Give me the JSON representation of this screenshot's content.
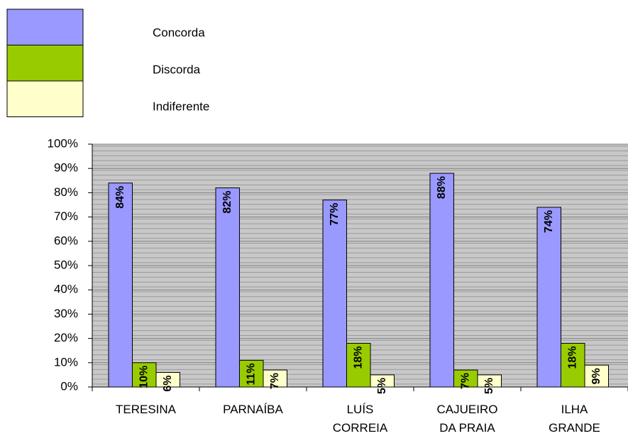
{
  "chart_data": {
    "type": "bar",
    "categories": [
      [
        "TERESINA"
      ],
      [
        "PARNAÍBA"
      ],
      [
        "LUÍS",
        "CORREIA"
      ],
      [
        "CAJUEIRO",
        "DA PRAIA"
      ],
      [
        "ILHA",
        "GRANDE"
      ]
    ],
    "series": [
      {
        "name": "Concorda",
        "color": "#9999ff",
        "values": [
          84,
          82,
          77,
          88,
          74
        ],
        "value_labels": [
          "84%",
          "82%",
          "77%",
          "88%",
          "74%"
        ]
      },
      {
        "name": "Discorda",
        "color": "#99cc00",
        "values": [
          10,
          11,
          18,
          7,
          18
        ],
        "value_labels": [
          "10%",
          "11%",
          "18%",
          "7%",
          "18%"
        ]
      },
      {
        "name": "Indiferente",
        "color": "#ffffcc",
        "values": [
          6,
          7,
          5,
          5,
          9
        ],
        "value_labels": [
          "6%",
          "7%",
          "5%",
          "5%",
          "9%"
        ]
      }
    ],
    "ylim": [
      0,
      100
    ],
    "yticks": [
      {
        "value": 0,
        "label": "0%"
      },
      {
        "value": 10,
        "label": "10%"
      },
      {
        "value": 20,
        "label": "20%"
      },
      {
        "value": 30,
        "label": "30%"
      },
      {
        "value": 40,
        "label": "40%"
      },
      {
        "value": 50,
        "label": "50%"
      },
      {
        "value": 60,
        "label": "60%"
      },
      {
        "value": 70,
        "label": "70%"
      },
      {
        "value": 80,
        "label": "80%"
      },
      {
        "value": 90,
        "label": "90%"
      },
      {
        "value": 100,
        "label": "100%"
      }
    ],
    "grid": true,
    "legend": "top-left"
  }
}
